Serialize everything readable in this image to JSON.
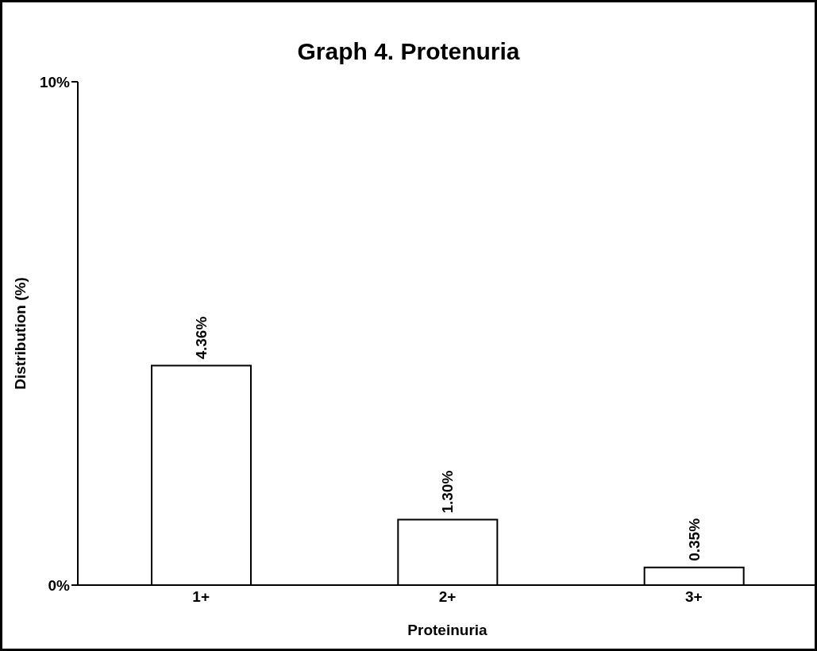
{
  "chart_data": {
    "type": "bar",
    "title": "Graph 4. Protenuria",
    "xlabel": "Proteinuria",
    "ylabel": "Distribution (%)",
    "categories": [
      "1+",
      "2+",
      "3+"
    ],
    "values": [
      4.36,
      1.3,
      0.35
    ],
    "value_labels": [
      "4.36%",
      "1.30%",
      "0.35%"
    ],
    "color": "#ffffff",
    "ylim": [
      0,
      10
    ],
    "yticks": [
      {
        "value": 0,
        "label": "0%"
      },
      {
        "value": 10,
        "label": "10%"
      }
    ],
    "grid": false,
    "legend": false
  }
}
